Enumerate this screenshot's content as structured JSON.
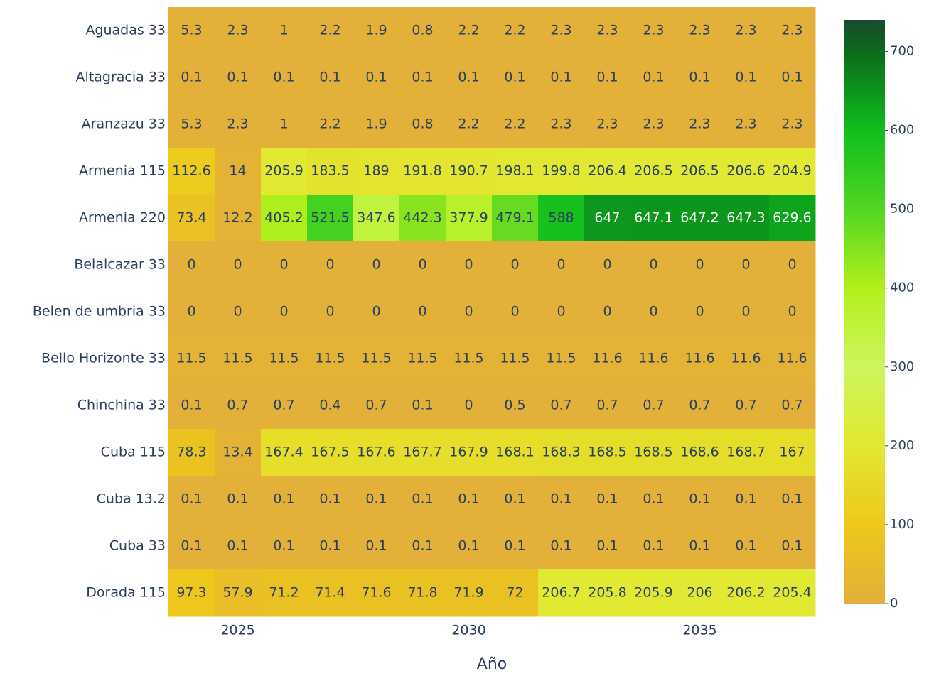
{
  "chart_data": {
    "type": "heatmap",
    "x_label": "Año",
    "x": [
      2024,
      2025,
      2026,
      2027,
      2028,
      2029,
      2030,
      2031,
      2032,
      2033,
      2034,
      2035,
      2036,
      2037
    ],
    "xlim": [
      2023.5,
      2037.5
    ],
    "xticks": [
      2025,
      2030,
      2035
    ],
    "categories": [
      "Aguadas 33",
      "Altagracia 33",
      "Aranzazu 33",
      "Armenia 115",
      "Armenia 220",
      "Belalcazar 33",
      "Belen de umbria 33",
      "Bello Horizonte 33",
      "Chinchina 33",
      "Cuba 115",
      "Cuba 13.2",
      "Cuba 33",
      "Dorada 115"
    ],
    "z": [
      [
        5.3,
        2.3,
        1,
        2.2,
        1.9,
        0.8,
        2.2,
        2.2,
        2.3,
        2.3,
        2.3,
        2.3,
        2.3,
        2.3
      ],
      [
        0.1,
        0.1,
        0.1,
        0.1,
        0.1,
        0.1,
        0.1,
        0.1,
        0.1,
        0.1,
        0.1,
        0.1,
        0.1,
        0.1
      ],
      [
        5.3,
        2.3,
        1,
        2.2,
        1.9,
        0.8,
        2.2,
        2.2,
        2.3,
        2.3,
        2.3,
        2.3,
        2.3,
        2.3
      ],
      [
        112.6,
        14,
        205.9,
        183.5,
        189,
        191.8,
        190.7,
        198.1,
        199.8,
        206.4,
        206.5,
        206.5,
        206.6,
        204.9
      ],
      [
        73.4,
        12.2,
        405.2,
        521.5,
        347.6,
        442.3,
        377.9,
        479.1,
        588,
        647,
        647.1,
        647.2,
        647.3,
        629.6
      ],
      [
        0,
        0,
        0,
        0,
        0,
        0,
        0,
        0,
        0,
        0,
        0,
        0,
        0,
        0
      ],
      [
        0,
        0,
        0,
        0,
        0,
        0,
        0,
        0,
        0,
        0,
        0,
        0,
        0,
        0
      ],
      [
        11.5,
        11.5,
        11.5,
        11.5,
        11.5,
        11.5,
        11.5,
        11.5,
        11.5,
        11.6,
        11.6,
        11.6,
        11.6,
        11.6
      ],
      [
        0.1,
        0.7,
        0.7,
        0.4,
        0.7,
        0.1,
        0,
        0.5,
        0.7,
        0.7,
        0.7,
        0.7,
        0.7,
        0.7
      ],
      [
        78.3,
        13.4,
        167.4,
        167.5,
        167.6,
        167.7,
        167.9,
        168.1,
        168.3,
        168.5,
        168.5,
        168.6,
        168.7,
        167
      ],
      [
        0.1,
        0.1,
        0.1,
        0.1,
        0.1,
        0.1,
        0.1,
        0.1,
        0.1,
        0.1,
        0.1,
        0.1,
        0.1,
        0.1
      ],
      [
        0.1,
        0.1,
        0.1,
        0.1,
        0.1,
        0.1,
        0.1,
        0.1,
        0.1,
        0.1,
        0.1,
        0.1,
        0.1,
        0.1
      ],
      [
        97.3,
        57.9,
        71.2,
        71.4,
        71.6,
        71.8,
        71.9,
        72,
        206.7,
        205.8,
        205.9,
        206,
        206.2,
        205.4
      ]
    ],
    "zlim": [
      0,
      740
    ],
    "zticks": [
      0,
      100,
      200,
      300,
      400,
      500,
      600,
      700
    ],
    "colorscale": [
      [
        0,
        "#e3b03a"
      ],
      [
        100,
        "#edc81a"
      ],
      [
        200,
        "#e2e830"
      ],
      [
        300,
        "#cdf55c"
      ],
      [
        400,
        "#b2ef1c"
      ],
      [
        500,
        "#52d622"
      ],
      [
        600,
        "#0fbe1c"
      ],
      [
        700,
        "#0b6a1c"
      ],
      [
        740,
        "#174a30"
      ]
    ]
  }
}
